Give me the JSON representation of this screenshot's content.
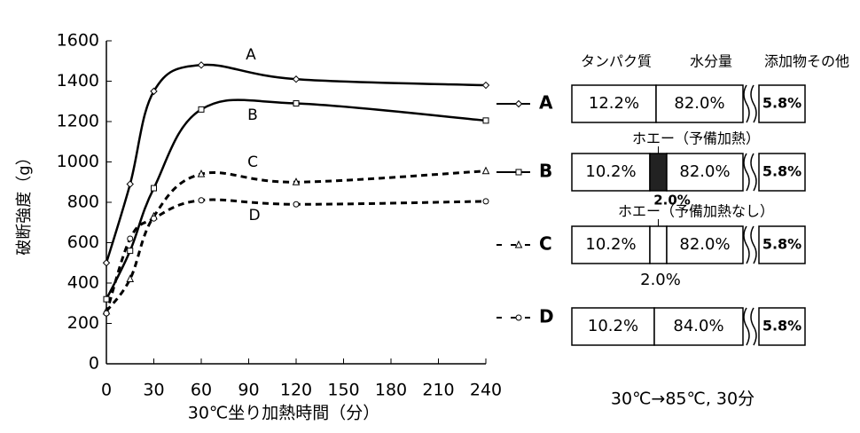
{
  "chart_data": {
    "type": "line",
    "y_label": "破断強度（g）",
    "x_label": "30℃坐り加熱時間（分）",
    "x": [
      0,
      15,
      30,
      60,
      120,
      240
    ],
    "series": [
      {
        "name": "A",
        "color": "#000000",
        "dash": "solid",
        "marker": "diamond",
        "values": [
          500,
          890,
          1350,
          1480,
          1410,
          1380
        ]
      },
      {
        "name": "B",
        "color": "#000000",
        "dash": "solid",
        "marker": "square",
        "values": [
          320,
          560,
          870,
          1260,
          1290,
          1205
        ]
      },
      {
        "name": "C",
        "color": "#000000",
        "dash": "dashed",
        "marker": "triangle",
        "values": [
          260,
          420,
          730,
          940,
          900,
          955
        ]
      },
      {
        "name": "D",
        "color": "#000000",
        "dash": "dashed",
        "marker": "circle",
        "values": [
          250,
          620,
          720,
          810,
          790,
          805
        ]
      }
    ],
    "xlim": [
      0,
      240
    ],
    "xticks": [
      0,
      30,
      60,
      90,
      120,
      150,
      180,
      210,
      240
    ],
    "ylim": [
      0,
      1600
    ],
    "yticks": [
      0,
      200,
      400,
      600,
      800,
      1000,
      1200,
      1400,
      1600
    ]
  },
  "composition": {
    "headers": [
      "タンパク質",
      "水分量",
      "添加物その他"
    ],
    "rows": [
      {
        "protein": "12.2%",
        "water": "82.0%",
        "other": "5.8%"
      },
      {
        "note": "ホエー（予備加熱）",
        "protein": "10.2%",
        "whey_fill": "#222222",
        "water": "82.0%",
        "other": "5.8%",
        "whey": "2.0%"
      },
      {
        "note": "ホエー（予備加熱なし）",
        "protein": "10.2%",
        "whey_fill": "#ffffff",
        "water": "82.0%",
        "other": "5.8%",
        "whey": "2.0%"
      },
      {
        "protein": "10.2%",
        "water": "84.0%",
        "other": "5.8%"
      }
    ],
    "footer": "30℃→85℃, 30分"
  }
}
